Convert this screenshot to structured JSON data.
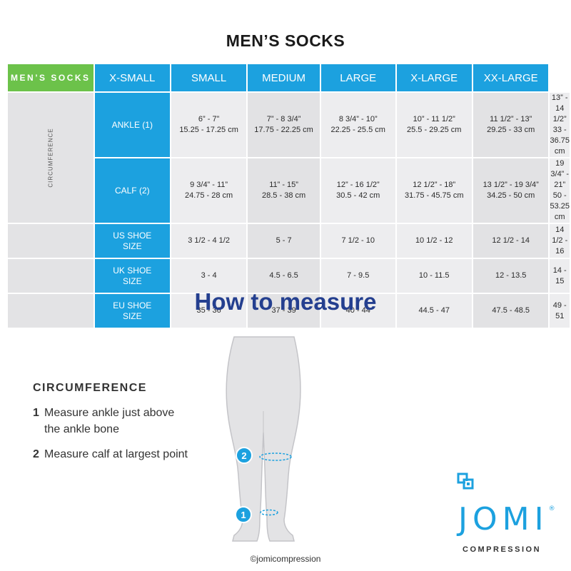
{
  "title": "MEN’S SOCKS",
  "table": {
    "brand_label": "MEN’S SOCKS",
    "group_label": "CIRCUMFERENCE",
    "sizes": [
      "X-SMALL",
      "SMALL",
      "MEDIUM",
      "LARGE",
      "X-LARGE",
      "XX-LARGE"
    ],
    "rows": [
      {
        "label_line1": "ANKLE (1)",
        "label_line2": "",
        "cells": [
          {
            "l1": "6” - 7”",
            "l2": "15.25 - 17.25 cm"
          },
          {
            "l1": "7” - 8 3/4”",
            "l2": "17.75 - 22.25 cm"
          },
          {
            "l1": "8 3/4” - 10”",
            "l2": "22.25 - 25.5 cm"
          },
          {
            "l1": "10” - 11 1/2”",
            "l2": "25.5 - 29.25 cm"
          },
          {
            "l1": "11 1/2” - 13”",
            "l2": "29.25 - 33 cm"
          },
          {
            "l1": "13” - 14 1/2”",
            "l2": "33 - 36.75 cm"
          }
        ]
      },
      {
        "label_line1": "CALF (2)",
        "label_line2": "",
        "cells": [
          {
            "l1": "9 3/4” - 11”",
            "l2": "24.75 - 28 cm"
          },
          {
            "l1": "11” - 15”",
            "l2": "28.5 - 38 cm"
          },
          {
            "l1": "12” - 16 1/2”",
            "l2": "30.5 - 42 cm"
          },
          {
            "l1": "12 1/2” - 18”",
            "l2": "31.75 - 45.75 cm"
          },
          {
            "l1": "13 1/2” - 19 3/4”",
            "l2": "34.25 - 50 cm"
          },
          {
            "l1": "19 3/4” - 21”",
            "l2": "50 - 53.25 cm"
          }
        ]
      },
      {
        "label_line1": "US SHOE",
        "label_line2": "SIZE",
        "cells": [
          {
            "l1": "3 1/2 - 4 1/2",
            "l2": ""
          },
          {
            "l1": "5 - 7",
            "l2": ""
          },
          {
            "l1": "7 1/2 - 10",
            "l2": ""
          },
          {
            "l1": "10 1/2 - 12",
            "l2": ""
          },
          {
            "l1": "12 1/2 - 14",
            "l2": ""
          },
          {
            "l1": "14 1/2 - 16",
            "l2": ""
          }
        ]
      },
      {
        "label_line1": "UK SHOE",
        "label_line2": "SIZE",
        "cells": [
          {
            "l1": "3 - 4",
            "l2": ""
          },
          {
            "l1": "4.5 - 6.5",
            "l2": ""
          },
          {
            "l1": "7 - 9.5",
            "l2": ""
          },
          {
            "l1": "10 - 11.5",
            "l2": ""
          },
          {
            "l1": "12 - 13.5",
            "l2": ""
          },
          {
            "l1": "14 - 15",
            "l2": ""
          }
        ]
      },
      {
        "label_line1": "EU SHOE",
        "label_line2": "SIZE",
        "cells": [
          {
            "l1": "35 - 36",
            "l2": ""
          },
          {
            "l1": "37 - 39",
            "l2": ""
          },
          {
            "l1": "40 - 44",
            "l2": ""
          },
          {
            "l1": "44.5 - 47",
            "l2": ""
          },
          {
            "l1": "47.5 - 48.5",
            "l2": ""
          },
          {
            "l1": "49 - 51",
            "l2": ""
          }
        ]
      }
    ]
  },
  "howto": {
    "heading": "How to measure",
    "section_title": "CIRCUMFERENCE",
    "steps": [
      {
        "num": "1",
        "line1": "Measure ankle just above",
        "line2": "the ankle bone"
      },
      {
        "num": "2",
        "line1": "Measure calf at largest point",
        "line2": ""
      }
    ],
    "markers": [
      "1",
      "2"
    ]
  },
  "copyright": "©jomicompression",
  "logo": {
    "word": "JOMI",
    "registered": "®",
    "sub": "COMPRESSION"
  },
  "colors": {
    "accent_blue": "#1ca1df",
    "brand_green": "#6cc24a",
    "heading_navy": "#243f8f"
  }
}
